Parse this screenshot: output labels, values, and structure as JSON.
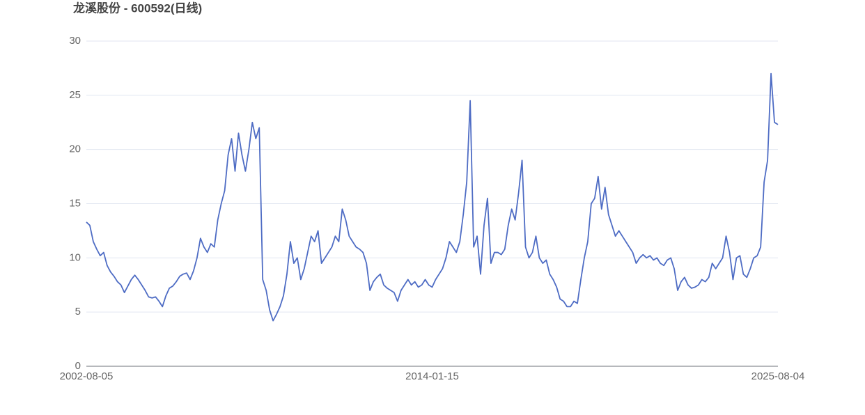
{
  "chart_data": {
    "type": "line",
    "title": "龙溪股份 - 600592(日线)",
    "categories": [
      "2002-08-05",
      null,
      null,
      null,
      null,
      null,
      null,
      null,
      null,
      null,
      null,
      null,
      null,
      null,
      null,
      null,
      null,
      null,
      null,
      null,
      null,
      null,
      null,
      null,
      null,
      null,
      null,
      null,
      null,
      null,
      null,
      null,
      null,
      null,
      null,
      null,
      null,
      null,
      null,
      null,
      null,
      null,
      null,
      null,
      null,
      null,
      null,
      null,
      null,
      null,
      null,
      null,
      null,
      null,
      null,
      null,
      null,
      null,
      null,
      null,
      null,
      null,
      null,
      null,
      null,
      null,
      null,
      null,
      null,
      null,
      null,
      null,
      null,
      null,
      null,
      null,
      null,
      null,
      null,
      null,
      null,
      null,
      null,
      null,
      null,
      null,
      null,
      null,
      null,
      null,
      null,
      null,
      null,
      null,
      null,
      null,
      null,
      null,
      null,
      null,
      "2014-01-15",
      null,
      null,
      null,
      null,
      null,
      null,
      null,
      null,
      null,
      null,
      null,
      null,
      null,
      null,
      null,
      null,
      null,
      null,
      null,
      null,
      null,
      null,
      null,
      null,
      null,
      null,
      null,
      null,
      null,
      null,
      null,
      null,
      null,
      null,
      null,
      null,
      null,
      null,
      null,
      null,
      null,
      null,
      null,
      null,
      null,
      null,
      null,
      null,
      null,
      null,
      null,
      null,
      null,
      null,
      null,
      null,
      null,
      null,
      null,
      null,
      null,
      null,
      null,
      null,
      null,
      null,
      null,
      null,
      null,
      null,
      null,
      null,
      null,
      null,
      null,
      null,
      null,
      null,
      null,
      null,
      null,
      null,
      null,
      null,
      null,
      null,
      null,
      null,
      null,
      null,
      null,
      null,
      null,
      null,
      null,
      null,
      null,
      null,
      null,
      "2025-08-04"
    ],
    "series": [
      {
        "color": "#4e6cc4",
        "values": [
          13.3,
          13.0,
          11.5,
          10.8,
          10.2,
          10.5,
          9.3,
          8.7,
          8.3,
          7.8,
          7.5,
          6.8,
          7.4,
          8.0,
          8.4,
          8.0,
          7.5,
          7.0,
          6.4,
          6.3,
          6.4,
          6.0,
          5.5,
          6.5,
          7.2,
          7.4,
          7.8,
          8.3,
          8.5,
          8.6,
          8.0,
          8.8,
          10.0,
          11.8,
          11.0,
          10.5,
          11.3,
          11.0,
          13.5,
          15.0,
          16.2,
          19.5,
          21.0,
          18.0,
          21.5,
          19.5,
          18.0,
          20.0,
          22.5,
          21.0,
          22.0,
          8.0,
          7.0,
          5.2,
          4.2,
          4.8,
          5.5,
          6.5,
          8.5,
          11.5,
          9.5,
          10.0,
          8.0,
          9.0,
          10.5,
          12.0,
          11.5,
          12.5,
          9.5,
          10.0,
          10.5,
          11.0,
          12.0,
          11.5,
          14.5,
          13.5,
          12.0,
          11.5,
          11.0,
          10.8,
          10.5,
          9.5,
          7.0,
          7.8,
          8.2,
          8.5,
          7.5,
          7.2,
          7.0,
          6.8,
          6.0,
          7.0,
          7.5,
          8.0,
          7.5,
          7.8,
          7.3,
          7.5,
          8.0,
          7.5,
          7.3,
          8.0,
          8.5,
          9.0,
          10.0,
          11.5,
          11.0,
          10.5,
          11.5,
          14.0,
          17.0,
          24.5,
          11.0,
          12.0,
          8.5,
          13.0,
          15.5,
          9.5,
          10.5,
          10.5,
          10.3,
          10.8,
          13.0,
          14.5,
          13.5,
          16.0,
          19.0,
          11.0,
          10.0,
          10.5,
          12.0,
          10.0,
          9.5,
          9.8,
          8.5,
          8.0,
          7.3,
          6.2,
          6.0,
          5.5,
          5.5,
          6.0,
          5.8,
          8.0,
          10.0,
          11.5,
          15.0,
          15.5,
          17.5,
          14.5,
          16.5,
          14.0,
          13.0,
          12.0,
          12.5,
          12.0,
          11.5,
          11.0,
          10.5,
          9.5,
          10.0,
          10.3,
          10.0,
          10.2,
          9.8,
          10.0,
          9.5,
          9.3,
          9.8,
          10.0,
          9.0,
          7.0,
          7.8,
          8.2,
          7.5,
          7.2,
          7.3,
          7.5,
          8.0,
          7.8,
          8.2,
          9.5,
          9.0,
          9.5,
          10.0,
          12.0,
          10.5,
          8.0,
          10.0,
          10.2,
          8.5,
          8.2,
          9.0,
          10.0,
          10.2,
          11.0,
          17.0,
          19.0,
          27.0,
          22.5,
          22.3
        ]
      }
    ],
    "ylim": [
      0,
      30
    ],
    "yticks": [
      0,
      5,
      10,
      15,
      20,
      25,
      30
    ],
    "grid": true
  }
}
